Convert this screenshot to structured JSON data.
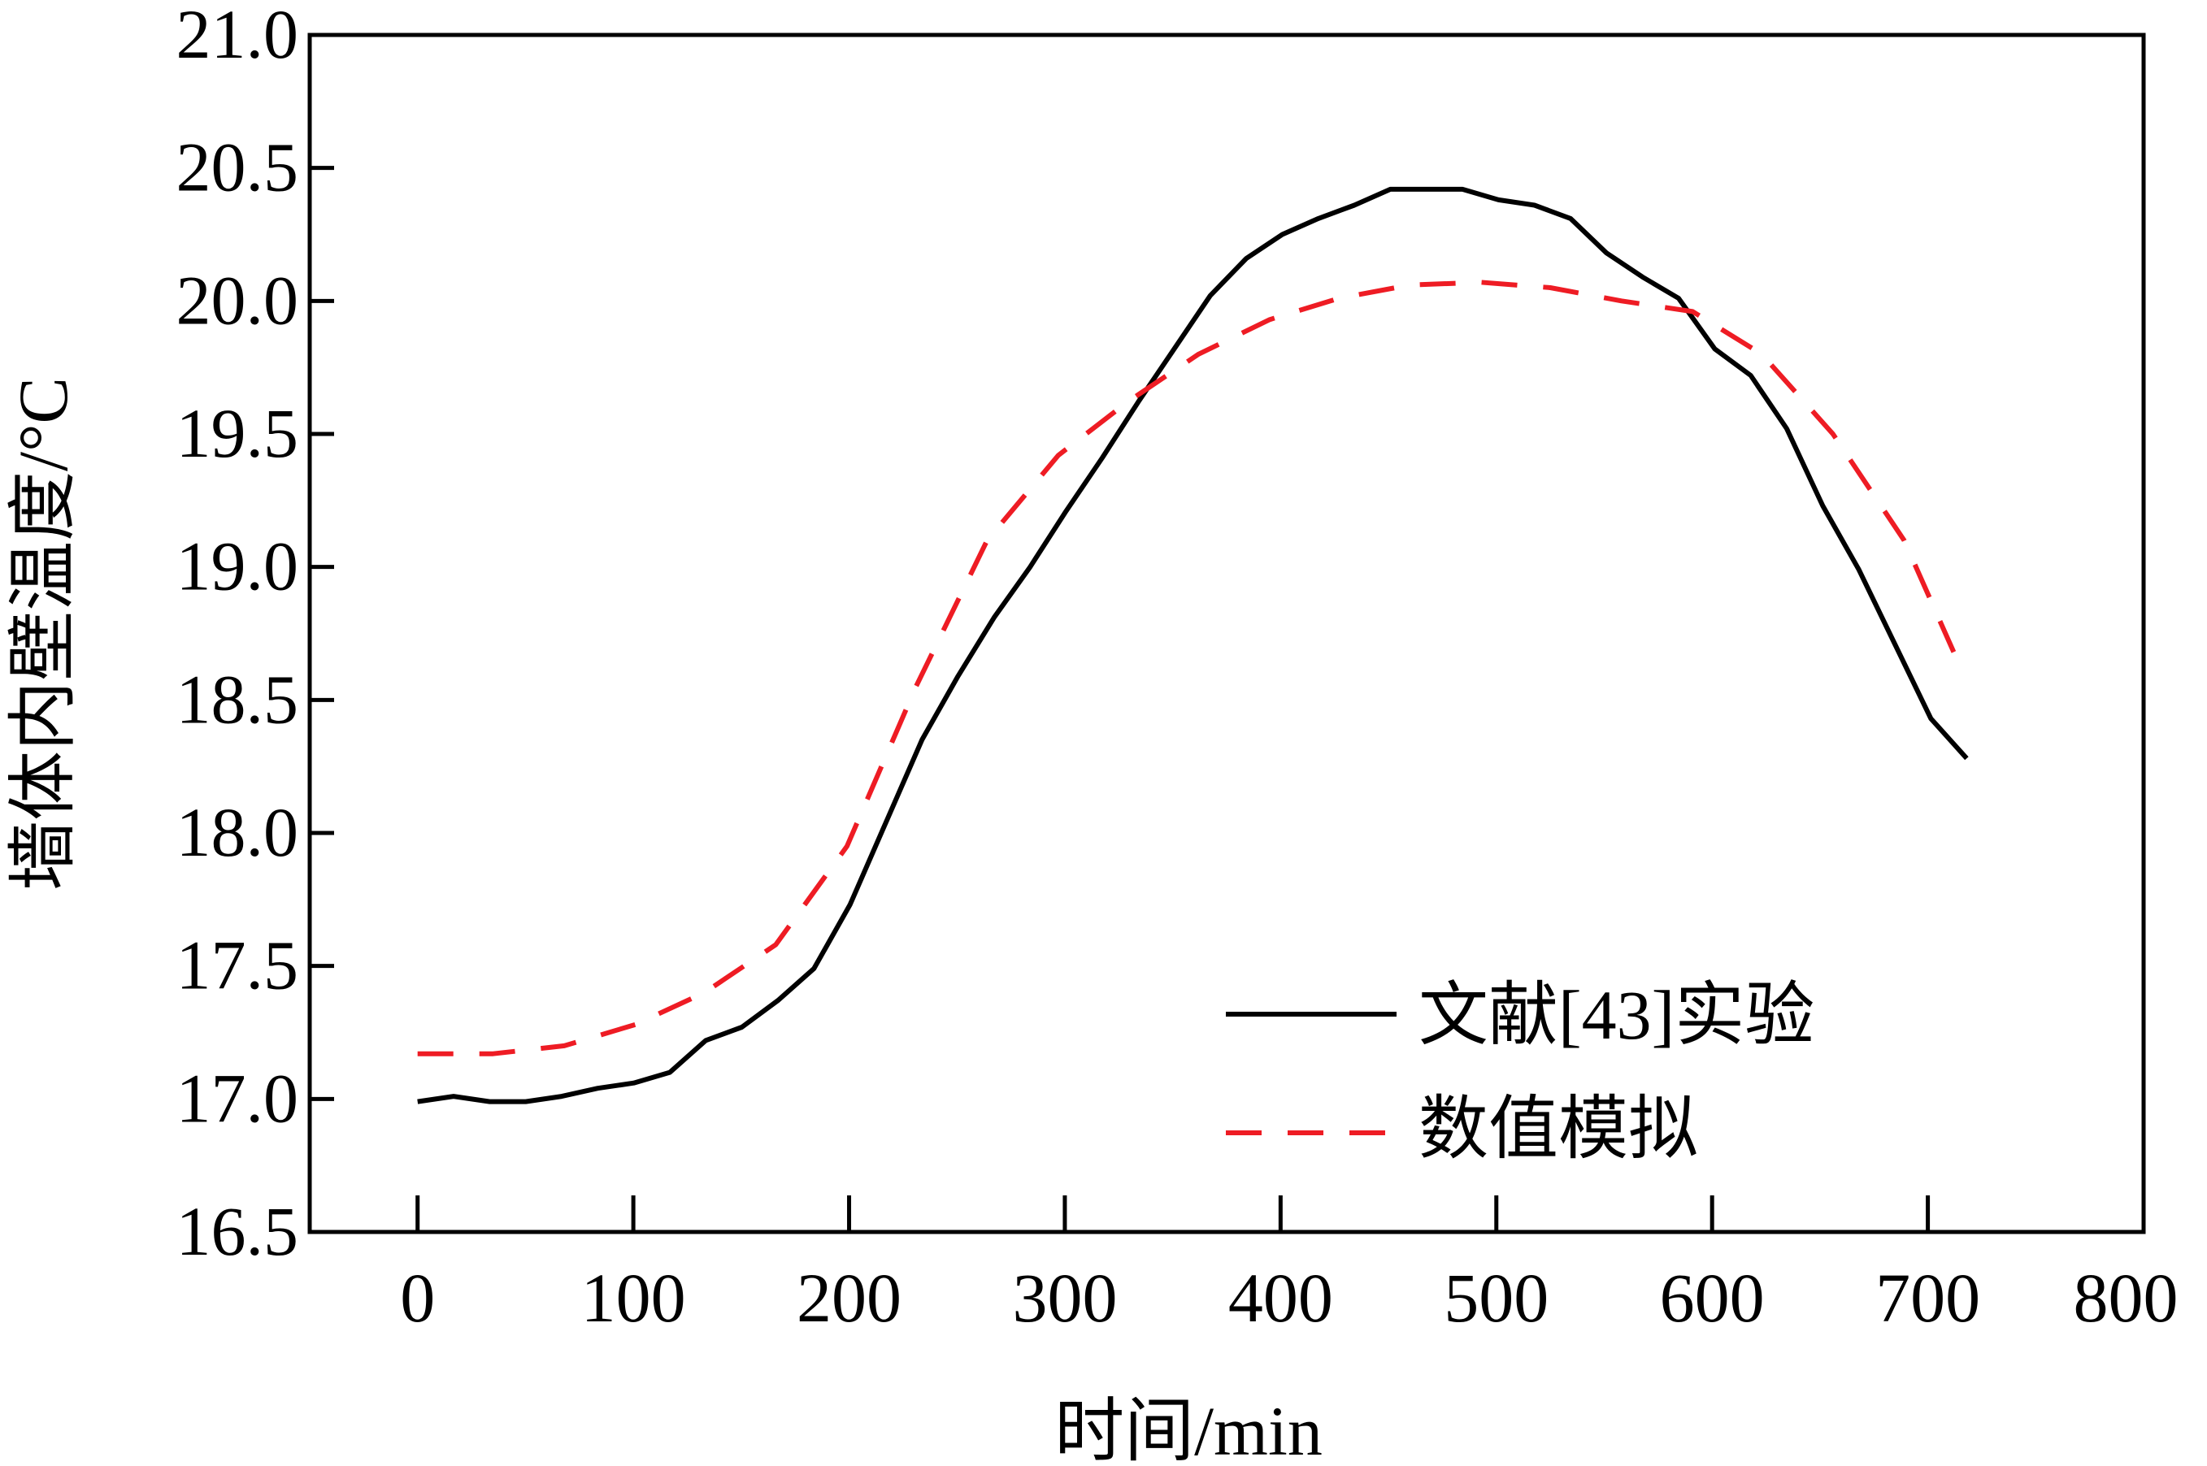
{
  "chart_data": {
    "type": "line",
    "title": "",
    "xlabel": "时间/min",
    "ylabel": "墙体内壁温度/°C",
    "xlim": [
      -50,
      800
    ],
    "ylim": [
      16.5,
      21.0
    ],
    "xticks": [
      "0",
      "100",
      "200",
      "300",
      "400",
      "500",
      "600",
      "700",
      "800"
    ],
    "xtick_values": [
      0,
      100,
      200,
      300,
      400,
      500,
      600,
      700,
      800
    ],
    "yticks": [
      "16.5",
      "17.0",
      "17.5",
      "18.0",
      "18.5",
      "19.0",
      "19.5",
      "20.0",
      "20.5",
      "21.0"
    ],
    "ytick_values": [
      16.5,
      17.0,
      17.5,
      18.0,
      18.5,
      19.0,
      19.5,
      20.0,
      20.5,
      21.0
    ],
    "grid": false,
    "legend_position": "bottom-right",
    "series": [
      {
        "name": "文献[43]实验",
        "color": "#000000",
        "style": "solid",
        "x": [
          0,
          16.7,
          33.4,
          50.1,
          66.8,
          83.5,
          100.2,
          116.9,
          133.6,
          150.3,
          167,
          183.7,
          200.4,
          217.1,
          233.8,
          250.5,
          267.2,
          283.9,
          300.6,
          317.3,
          334,
          350.7,
          367.4,
          384.1,
          400.8,
          417.5,
          434.2,
          450.9,
          467.6,
          484.3,
          501,
          517.7,
          534.4,
          551.1,
          567.8,
          584.5,
          601.2,
          617.9,
          634.6,
          651.3,
          668,
          684.7,
          701.4,
          718
        ],
        "y": [
          16.99,
          17.01,
          16.99,
          16.99,
          17.01,
          17.04,
          17.06,
          17.1,
          17.22,
          17.27,
          17.37,
          17.49,
          17.73,
          18.04,
          18.35,
          18.59,
          18.81,
          19.0,
          19.21,
          19.41,
          19.62,
          19.82,
          20.02,
          20.16,
          20.25,
          20.31,
          20.36,
          20.42,
          20.42,
          20.42,
          20.38,
          20.36,
          20.31,
          20.18,
          20.09,
          20.01,
          19.82,
          19.72,
          19.52,
          19.23,
          18.99,
          18.71,
          18.43,
          18.28
        ]
      },
      {
        "name": "数值模拟",
        "color": "#ee1c24",
        "style": "dashed",
        "x": [
          0,
          35,
          68,
          101,
          133,
          166,
          199,
          231,
          264,
          297,
          329,
          362,
          395,
          427,
          460,
          493,
          525,
          558,
          591,
          623,
          656,
          689,
          712
        ],
        "y": [
          17.17,
          17.17,
          17.2,
          17.28,
          17.4,
          17.58,
          17.95,
          18.55,
          19.1,
          19.42,
          19.62,
          19.8,
          19.93,
          20.01,
          20.06,
          20.07,
          20.05,
          20.0,
          19.96,
          19.8,
          19.5,
          19.1,
          18.68
        ]
      }
    ]
  }
}
